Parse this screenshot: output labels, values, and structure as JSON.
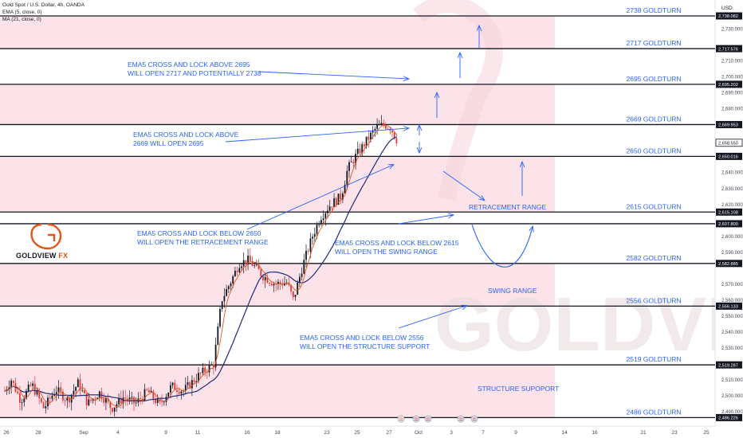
{
  "header": {
    "title": "Gold Spot / U.S. Dollar, 4h, OANDA",
    "indicator_1": "EMA (5, close, 0)",
    "indicator_2": "MA (21, close, 0)"
  },
  "brand": {
    "logo_text_main": "GOLDVIEW",
    "logo_text_fx": "FX",
    "watermark": "GOLDVIEW FX"
  },
  "chart_data": {
    "type": "candlestick",
    "instrument": "Gold Spot / U.S. Dollar",
    "timeframe": "4h",
    "currency": "USD",
    "ylim": [
      2486,
      2742
    ],
    "ytick_step": 10,
    "x_ticks": [
      "26",
      "28",
      "Sep",
      "4",
      "9",
      "11",
      "16",
      "18",
      "23",
      "25",
      "27",
      "Oct",
      "3",
      "7",
      "9",
      "14",
      "16",
      "21",
      "23",
      "25"
    ],
    "goldturn_levels": [
      {
        "label": "2738 GOLDTURN",
        "price": 2738.082,
        "price_label": "2,738.082"
      },
      {
        "label": "2717 GOLDTURN",
        "price": 2717.576,
        "price_label": "2,717.576"
      },
      {
        "label": "2695 GOLDTURN",
        "price": 2695.202,
        "price_label": "2,695.202"
      },
      {
        "label": "2669 GOLDTURN",
        "price": 2669.953,
        "price_label": "2,669.953"
      },
      {
        "label": "2650 GOLDTURN",
        "price": 2650.016,
        "price_label": "2,650.016"
      },
      {
        "label": "2615 GOLDTURN",
        "price": 2615.108,
        "price_label": "2,615.108"
      },
      {
        "label": "",
        "price": 2607.8,
        "price_label": "2,607.800"
      },
      {
        "label": "2582 GOLDTURN",
        "price": 2582.885,
        "price_label": "2,582.885"
      },
      {
        "label": "2556 GOLDTURN",
        "price": 2556.133,
        "price_label": "2,556.133"
      },
      {
        "label": "2519 GOLDTURN",
        "price": 2519.287,
        "price_label": "2,519.287"
      },
      {
        "label": "2486 GOLDTURN",
        "price": 2486.226,
        "price_label": "2,486.226"
      }
    ],
    "current_price": {
      "price": 2658.55,
      "label": "2,658.550"
    },
    "bands": [
      [
        2717.576,
        2738.082
      ],
      [
        2669.953,
        2695.202
      ],
      [
        2615.108,
        2650.016
      ],
      [
        2556.133,
        2582.885
      ],
      [
        2486.226,
        2519.287
      ]
    ],
    "annotations": {
      "note1_line1": "EMA5 CROSS AND LOCK ABOVE 2695",
      "note1_line2": "WILL OPEN 2717 AND POTENTIALLY 2738",
      "note2_line1": "EMA5 CROSS AND LOCK ABOVE",
      "note2_line2": "2669 WILL OPEN 2695",
      "note3_line1": "EMA5 CROSS AND LOCK BELOW 2650",
      "note3_line2": "WILL OPEN THE RETRACEMENT RANGE",
      "note4_line1": "EMA5 CROSS AND LOCK BELOW 2615",
      "note4_line2": "WILL OPEN THE SWING RANGE",
      "note5_line1": "EMA5 CROSS AND LOCK BELOW 2556",
      "note5_line2": "WILL OPEN THE STRUCTURE SUPPORT",
      "retracement_range": "RETRACEMENT RANGE",
      "swing_range": "SWING RANGE",
      "structure_support": "STRUCTURE SUPOPORT"
    },
    "close_path": [
      [
        "26",
        2503
      ],
      [
        "28",
        2506
      ],
      [
        "Sep",
        2492
      ],
      [
        "4",
        2497
      ],
      [
        "9",
        2505
      ],
      [
        "11",
        2515
      ],
      [
        "16",
        2585
      ],
      [
        "18",
        2570
      ],
      [
        "23",
        2628
      ],
      [
        "25",
        2657
      ],
      [
        "27",
        2668
      ],
      [
        "27",
        2658
      ]
    ]
  },
  "colors": {
    "band": "#fbe3e9",
    "level_line": "#131722",
    "annotation_blue": "#2962ff",
    "up_candle": "#131722",
    "down_candle": "#d93a3a",
    "ema": "#e2541a",
    "ma": "#1e2a78"
  }
}
